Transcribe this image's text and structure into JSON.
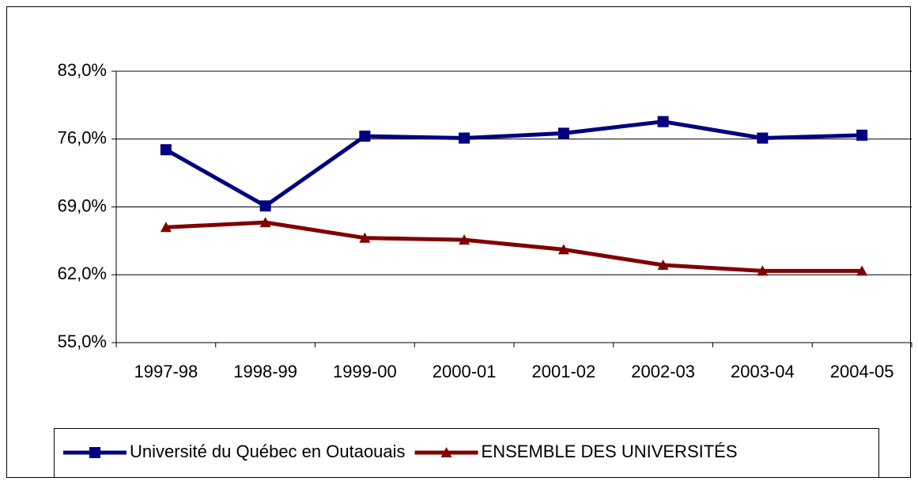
{
  "chart_data": {
    "type": "line",
    "categories": [
      "1997-98",
      "1998-99",
      "1999-00",
      "2000-01",
      "2001-02",
      "2002-03",
      "2003-04",
      "2004-05"
    ],
    "series": [
      {
        "name": "Université du Québec en Outaouais",
        "color": "#000080",
        "marker": "square",
        "values": [
          74.9,
          69.1,
          76.3,
          76.1,
          76.6,
          77.8,
          76.1,
          76.4
        ]
      },
      {
        "name": "ENSEMBLE DES UNIVERSITÉS",
        "color": "#800000",
        "marker": "triangle",
        "values": [
          66.9,
          67.4,
          65.8,
          65.6,
          64.6,
          63.0,
          62.4,
          62.4
        ]
      }
    ],
    "ylim": [
      55,
      83
    ],
    "yticks": [
      {
        "value": 55,
        "label": "55,0%"
      },
      {
        "value": 62,
        "label": "62,0%"
      },
      {
        "value": 69,
        "label": "69,0%"
      },
      {
        "value": 76,
        "label": "76,0%"
      },
      {
        "value": 83,
        "label": "83,0%"
      }
    ],
    "grid": true,
    "legend": "bottom"
  }
}
